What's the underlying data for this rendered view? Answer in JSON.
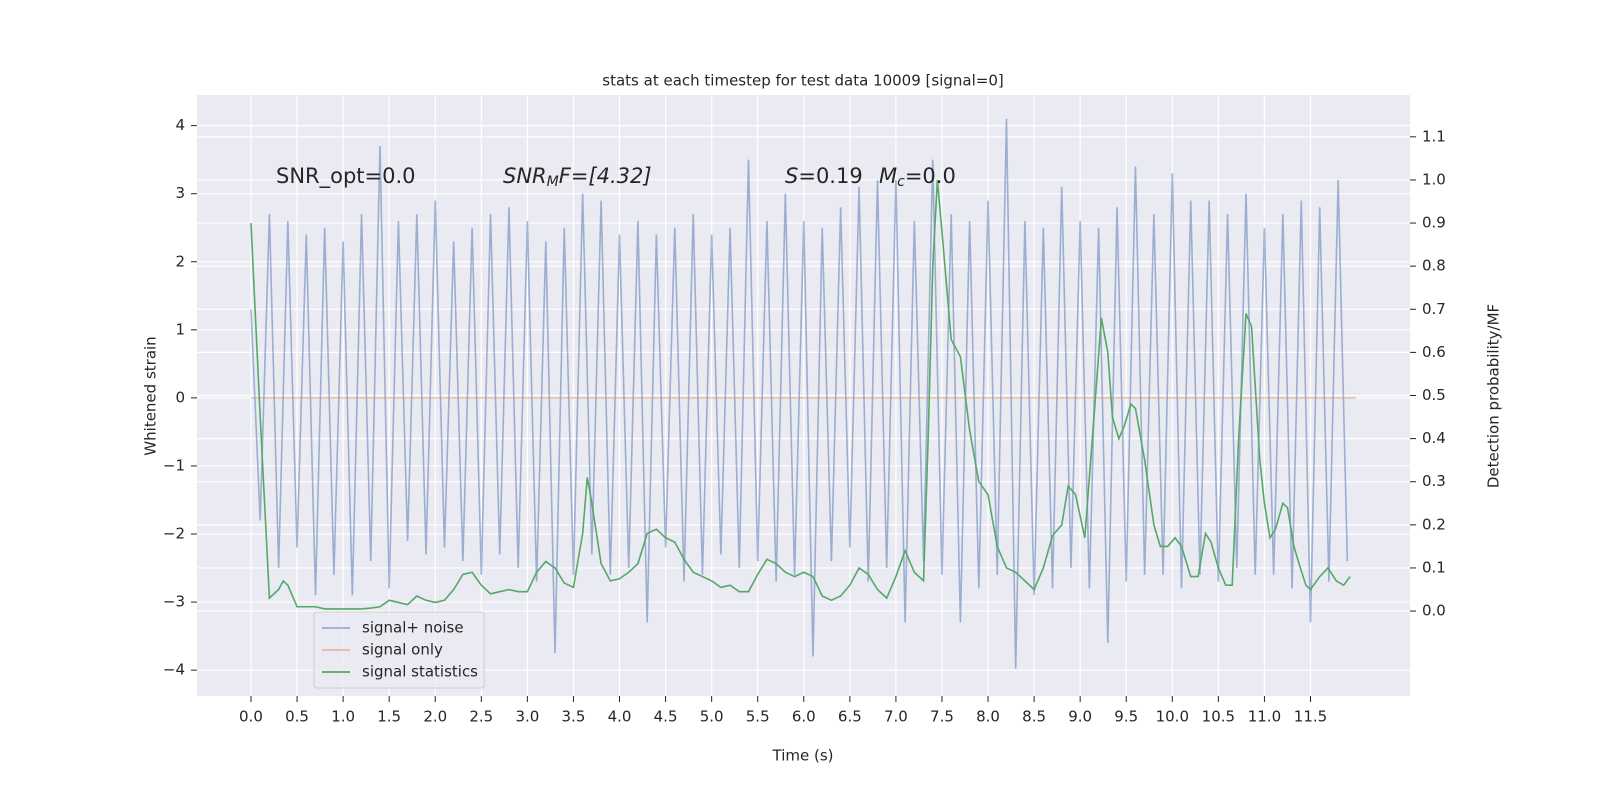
{
  "chart_data": {
    "type": "line",
    "title": "stats at each timestep for test data 10009 [signal=0]",
    "x_label": "Time (s)",
    "y_label": "Whitened strain",
    "y2_label": "Detection probability/MF",
    "xlim": [
      -0.586,
      12.58
    ],
    "ylim": [
      -4.38,
      4.45
    ],
    "y2lim": [
      -0.197,
      1.197
    ],
    "xticks": [
      {
        "value": 0,
        "label": "0.0"
      },
      0.5,
      {
        "value": 1,
        "label": "1.0"
      },
      1.5,
      {
        "value": 2,
        "label": "2.0"
      },
      2.5,
      {
        "value": 3,
        "label": "3.0"
      },
      3.5,
      {
        "value": 4,
        "label": "4.0"
      },
      4.5,
      {
        "value": 5,
        "label": "5.0"
      },
      5.5,
      {
        "value": 6,
        "label": "6.0"
      },
      6.5,
      {
        "value": 7,
        "label": "7.0"
      },
      7.5,
      {
        "value": 8,
        "label": "8.0"
      },
      8.5,
      {
        "value": 9,
        "label": "9.0"
      },
      9.5,
      {
        "value": 10,
        "label": "10.0"
      },
      10.5,
      {
        "value": 11,
        "label": "11.0"
      },
      11.5
    ],
    "yticks": [
      {
        "value": -4,
        "label": "−4"
      },
      {
        "value": -3,
        "label": "−3"
      },
      {
        "value": -2,
        "label": "−2"
      },
      {
        "value": -1,
        "label": "−1"
      },
      0,
      1,
      2,
      3,
      4
    ],
    "y2ticks": [
      {
        "value": 0,
        "label": "0.0"
      },
      0.1,
      0.2,
      0.3,
      0.4,
      0.5,
      0.6,
      0.7,
      0.8,
      0.9,
      {
        "value": 1,
        "label": "1.0"
      },
      1.1
    ],
    "grid": true,
    "legend": "lower left",
    "annotations": [
      "SNR_opt=0.0",
      [
        "SNR",
        "M",
        "F=[4.32]"
      ],
      [
        "S",
        "=0.19"
      ],
      [
        "M",
        "c",
        "=0.0"
      ]
    ],
    "series": [
      {
        "name": "signal+ noise",
        "color": "#4c72b0",
        "alpha": 0.5,
        "axis": "y",
        "x": [
          0.0,
          0.1,
          0.2,
          0.3,
          0.4,
          0.5,
          0.6,
          0.7,
          0.8,
          0.9,
          1.0,
          1.1,
          1.2,
          1.3,
          1.4,
          1.5,
          1.6,
          1.7,
          1.8,
          1.9,
          2.0,
          2.1,
          2.2,
          2.3,
          2.4,
          2.5,
          2.6,
          2.7,
          2.8,
          2.9,
          3.0,
          3.1,
          3.2,
          3.3,
          3.4,
          3.5,
          3.6,
          3.7,
          3.8,
          3.9,
          4.0,
          4.1,
          4.2,
          4.3,
          4.4,
          4.5,
          4.6,
          4.7,
          4.8,
          4.9,
          5.0,
          5.1,
          5.2,
          5.3,
          5.4,
          5.5,
          5.6,
          5.7,
          5.8,
          5.9,
          6.0,
          6.1,
          6.2,
          6.3,
          6.4,
          6.5,
          6.6,
          6.7,
          6.8,
          6.9,
          7.0,
          7.1,
          7.2,
          7.3,
          7.4,
          7.5,
          7.6,
          7.7,
          7.8,
          7.9,
          8.0,
          8.1,
          8.2,
          8.3,
          8.4,
          8.5,
          8.6,
          8.7,
          8.8,
          8.9,
          9.0,
          9.1,
          9.2,
          9.3,
          9.4,
          9.5,
          9.6,
          9.7,
          9.8,
          9.9,
          10.0,
          10.1,
          10.2,
          10.3,
          10.4,
          10.5,
          10.6,
          10.7,
          10.8,
          10.9,
          11.0,
          11.1,
          11.2,
          11.3,
          11.4,
          11.5,
          11.6,
          11.7,
          11.8,
          11.9
        ],
        "values": [
          1.3,
          -1.8,
          2.7,
          -2.5,
          2.6,
          -2.2,
          2.4,
          -2.9,
          2.5,
          -2.6,
          2.3,
          -2.9,
          2.7,
          -2.4,
          3.7,
          -2.8,
          2.6,
          -2.1,
          2.7,
          -2.3,
          2.9,
          -2.2,
          2.3,
          -2.4,
          2.5,
          -2.6,
          2.7,
          -2.3,
          2.8,
          -2.5,
          2.6,
          -2.7,
          2.3,
          -3.75,
          2.5,
          -2.6,
          3.0,
          -2.3,
          2.9,
          -2.6,
          2.4,
          -2.5,
          2.6,
          -3.3,
          2.4,
          -2.2,
          2.5,
          -2.7,
          2.7,
          -2.6,
          2.4,
          -2.3,
          2.5,
          -2.5,
          3.5,
          -2.4,
          2.6,
          -2.7,
          3.0,
          -2.6,
          2.6,
          -3.8,
          2.5,
          -2.4,
          2.8,
          -2.2,
          3.1,
          -2.7,
          3.2,
          -2.5,
          3.2,
          -3.3,
          2.6,
          -2.4,
          3.5,
          -2.6,
          2.7,
          -3.3,
          2.6,
          -2.8,
          2.9,
          -2.6,
          4.1,
          -3.98,
          2.6,
          -2.9,
          2.5,
          -2.8,
          3.1,
          -2.5,
          2.6,
          -2.8,
          2.5,
          -3.6,
          2.8,
          -2.7,
          3.4,
          -2.6,
          2.7,
          -2.6,
          3.3,
          -2.8,
          2.9,
          -2.6,
          2.9,
          -2.7,
          2.7,
          -2.5,
          3.0,
          -2.6,
          2.5,
          -2.6,
          2.7,
          -2.8,
          2.9,
          -3.3,
          2.8,
          -2.7,
          3.2,
          -2.4
        ]
      },
      {
        "name": "signal only",
        "color": "#dd8452",
        "alpha": 0.5,
        "axis": "y",
        "x": [
          0.0,
          11.99
        ],
        "values": [
          0,
          0
        ]
      },
      {
        "name": "signal statistics",
        "color": "#55a868",
        "alpha": 1,
        "axis": "y2",
        "x": [
          0.0,
          0.1,
          0.2,
          0.3,
          0.35,
          0.4,
          0.5,
          0.6,
          0.7,
          0.8,
          0.9,
          1.0,
          1.1,
          1.2,
          1.3,
          1.4,
          1.5,
          1.6,
          1.7,
          1.8,
          1.9,
          2.0,
          2.1,
          2.2,
          2.3,
          2.4,
          2.5,
          2.6,
          2.7,
          2.8,
          2.9,
          3.0,
          3.1,
          3.2,
          3.3,
          3.4,
          3.5,
          3.6,
          3.65,
          3.7,
          3.8,
          3.9,
          4.0,
          4.1,
          4.2,
          4.3,
          4.4,
          4.5,
          4.6,
          4.7,
          4.8,
          4.9,
          5.0,
          5.1,
          5.2,
          5.3,
          5.4,
          5.5,
          5.6,
          5.7,
          5.8,
          5.9,
          6.0,
          6.1,
          6.2,
          6.3,
          6.4,
          6.5,
          6.6,
          6.7,
          6.8,
          6.9,
          7.0,
          7.1,
          7.2,
          7.3,
          7.35,
          7.4,
          7.45,
          7.5,
          7.6,
          7.7,
          7.8,
          7.9,
          8.0,
          8.1,
          8.2,
          8.3,
          8.4,
          8.5,
          8.6,
          8.7,
          8.8,
          8.87,
          8.95,
          9.05,
          9.15,
          9.23,
          9.3,
          9.35,
          9.42,
          9.48,
          9.55,
          9.6,
          9.7,
          9.8,
          9.87,
          9.95,
          10.03,
          10.1,
          10.2,
          10.28,
          10.36,
          10.42,
          10.5,
          10.58,
          10.65,
          10.72,
          10.8,
          10.86,
          10.95,
          11.0,
          11.06,
          11.12,
          11.2,
          11.25,
          11.32,
          11.39,
          11.45,
          11.5,
          11.6,
          11.69,
          11.78,
          11.86,
          11.93
        ],
        "values": [
          0.9,
          0.45,
          0.03,
          0.05,
          0.07,
          0.06,
          0.01,
          0.01,
          0.01,
          0.005,
          0.005,
          0.005,
          0.005,
          0.005,
          0.007,
          0.01,
          0.025,
          0.02,
          0.015,
          0.035,
          0.025,
          0.02,
          0.025,
          0.05,
          0.085,
          0.09,
          0.06,
          0.04,
          0.045,
          0.05,
          0.045,
          0.045,
          0.09,
          0.115,
          0.1,
          0.065,
          0.055,
          0.18,
          0.31,
          0.25,
          0.11,
          0.07,
          0.075,
          0.09,
          0.11,
          0.18,
          0.19,
          0.17,
          0.16,
          0.12,
          0.09,
          0.08,
          0.07,
          0.055,
          0.06,
          0.045,
          0.045,
          0.085,
          0.12,
          0.11,
          0.09,
          0.08,
          0.09,
          0.08,
          0.035,
          0.025,
          0.035,
          0.06,
          0.1,
          0.085,
          0.05,
          0.03,
          0.08,
          0.14,
          0.09,
          0.07,
          0.4,
          0.8,
          1.0,
          0.88,
          0.63,
          0.59,
          0.42,
          0.3,
          0.27,
          0.15,
          0.1,
          0.09,
          0.07,
          0.05,
          0.1,
          0.175,
          0.2,
          0.29,
          0.27,
          0.17,
          0.45,
          0.68,
          0.6,
          0.45,
          0.4,
          0.43,
          0.48,
          0.47,
          0.35,
          0.2,
          0.15,
          0.15,
          0.17,
          0.15,
          0.08,
          0.08,
          0.18,
          0.16,
          0.1,
          0.06,
          0.06,
          0.4,
          0.69,
          0.66,
          0.35,
          0.25,
          0.17,
          0.19,
          0.25,
          0.24,
          0.15,
          0.1,
          0.06,
          0.05,
          0.08,
          0.1,
          0.07,
          0.06,
          0.08
        ]
      }
    ]
  }
}
